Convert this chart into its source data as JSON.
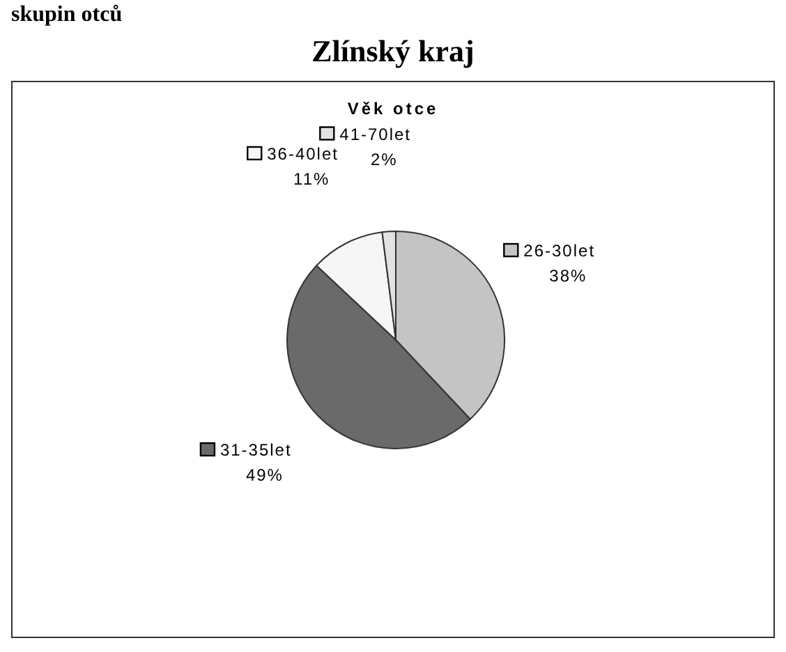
{
  "chart_data": {
    "type": "pie",
    "title": "Zlínský kraj",
    "subtitle": "Věk otce",
    "annotations": [
      "skupin otců"
    ],
    "categories": [
      "26-30let",
      "31-35let",
      "36-40let",
      "41-70let"
    ],
    "values": [
      38,
      49,
      11,
      2
    ],
    "colors": [
      "#c4c4c4",
      "#6a6a6a",
      "#f6f6f6",
      "#e2e2e2"
    ],
    "value_labels": [
      "38%",
      "49%",
      "11%",
      "2%"
    ],
    "legend": "center"
  }
}
